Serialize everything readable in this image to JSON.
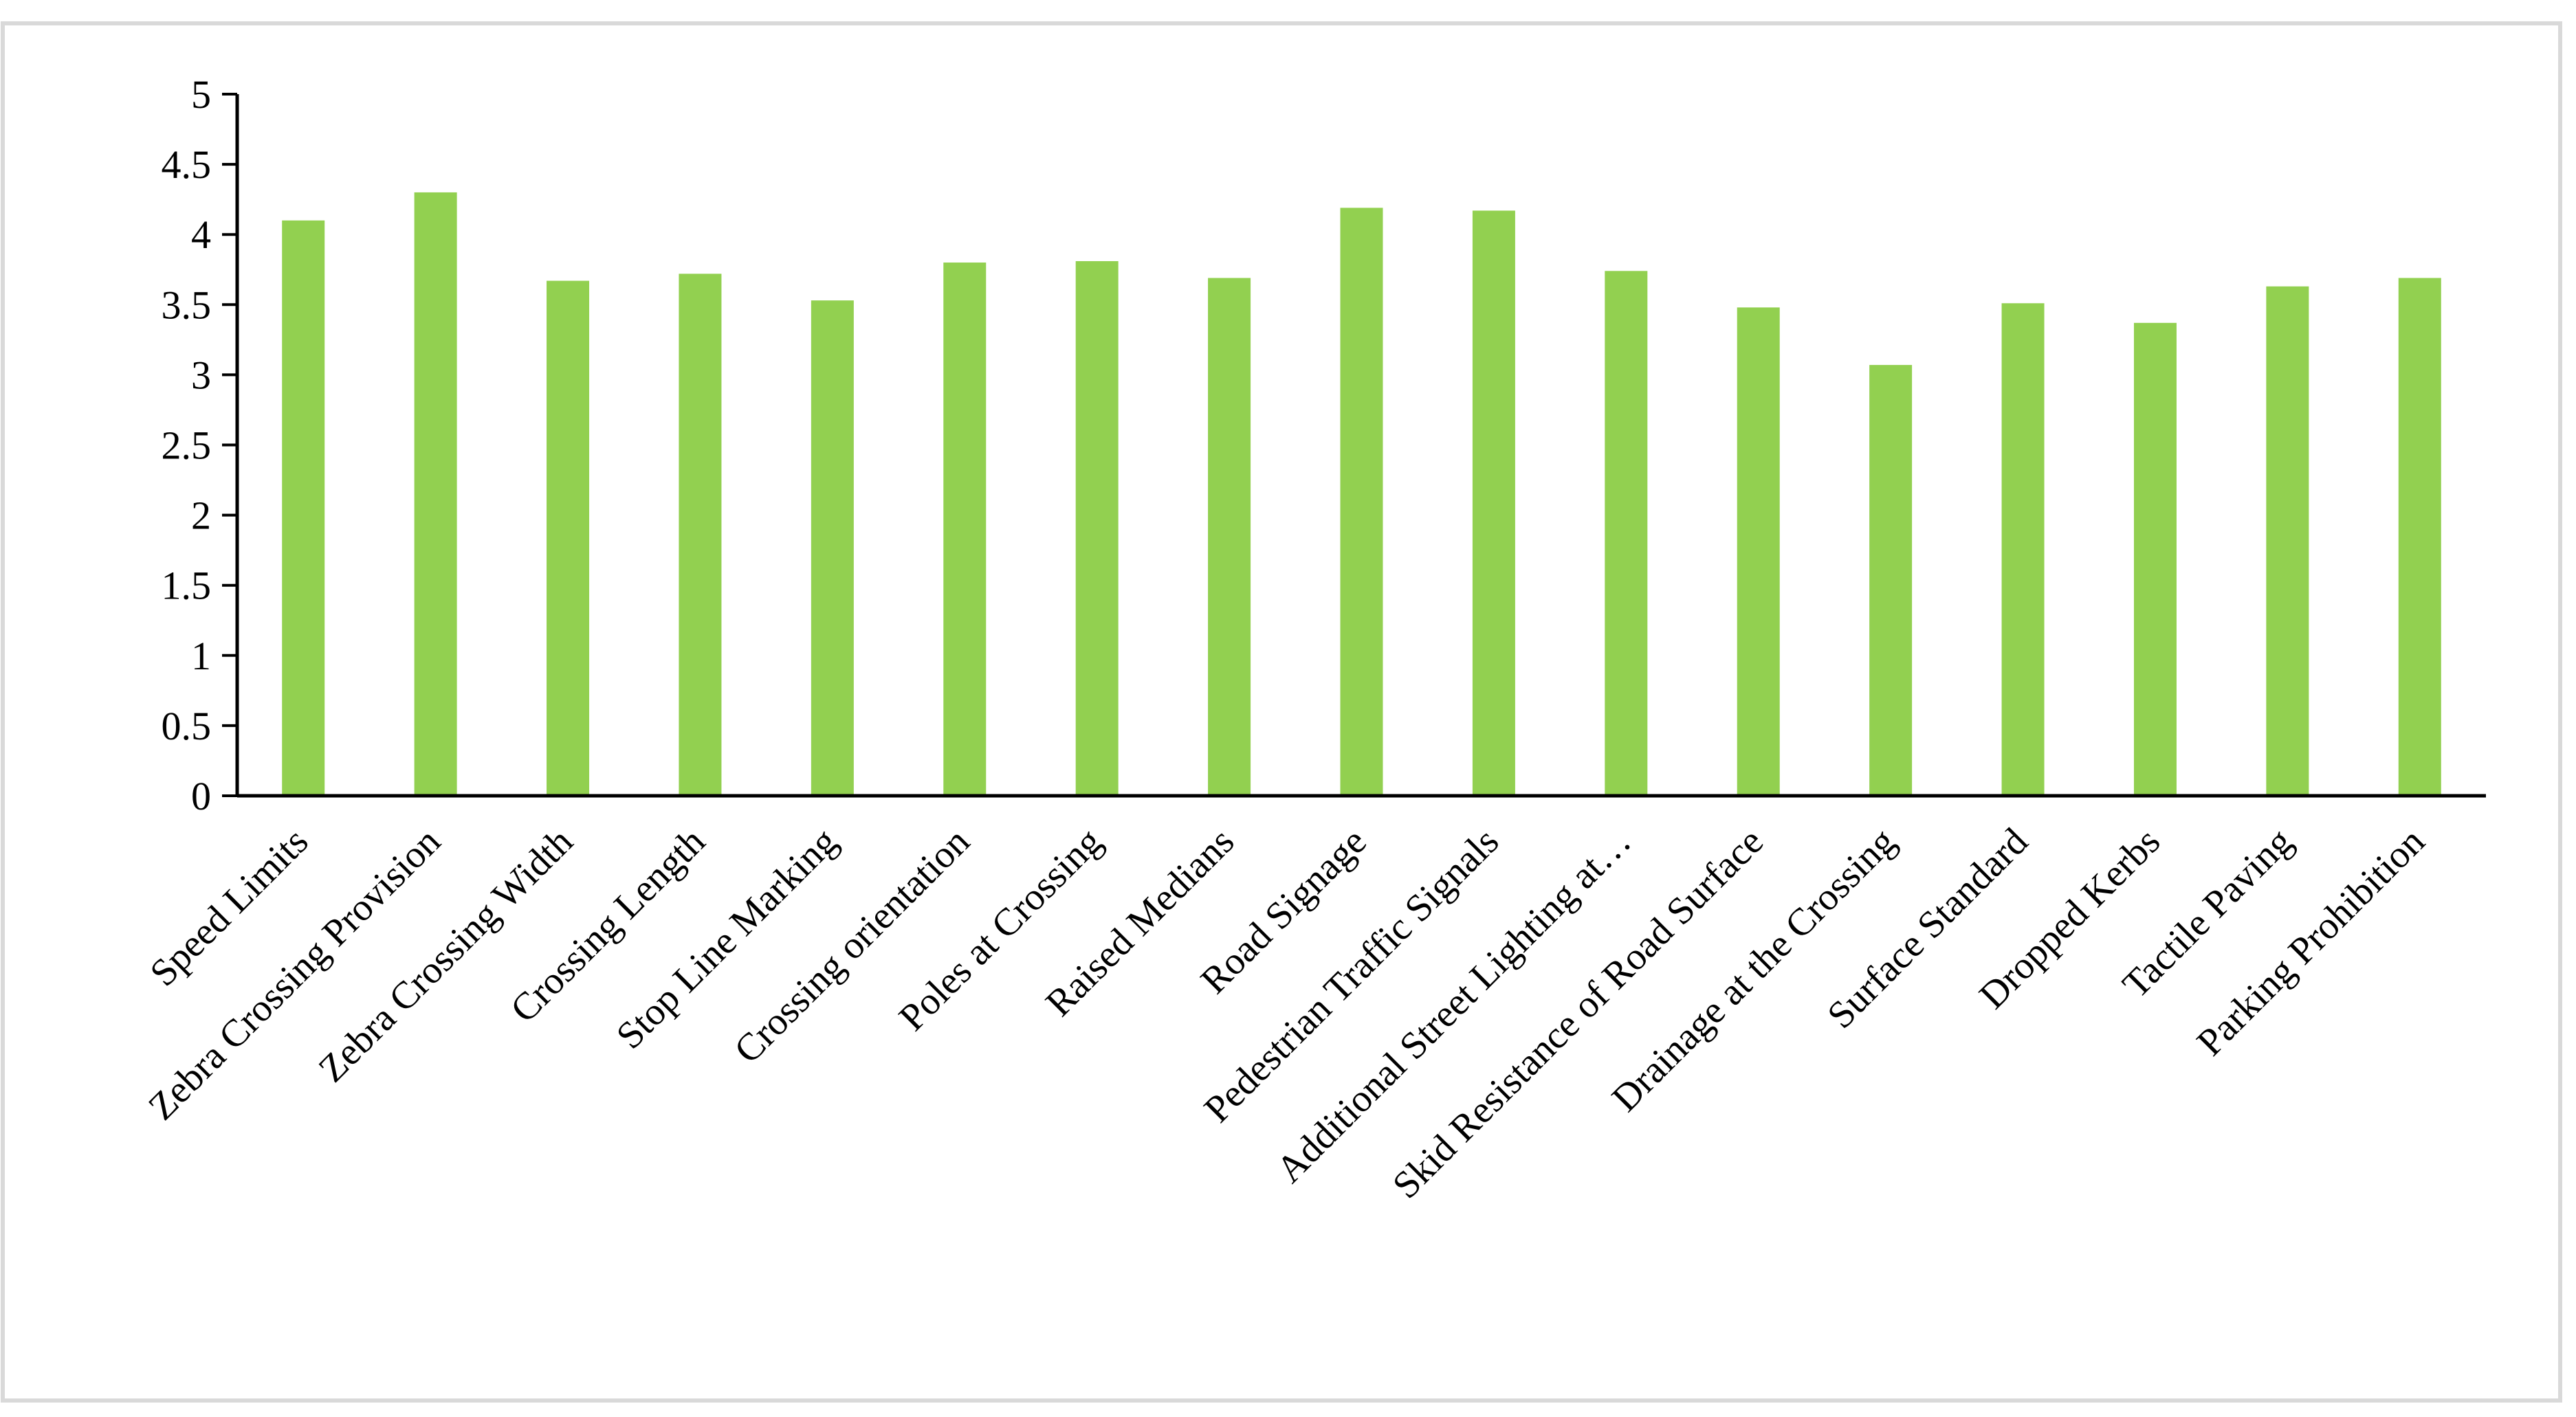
{
  "chart_data": {
    "type": "bar",
    "title": "",
    "xlabel": "",
    "ylabel": "",
    "ylim": [
      0,
      5
    ],
    "yticks": [
      "0",
      "0.5",
      "1",
      "1.5",
      "2",
      "2.5",
      "3",
      "3.5",
      "4",
      "4.5",
      "5"
    ],
    "ytick_values": [
      0,
      0.5,
      1,
      1.5,
      2,
      2.5,
      3,
      3.5,
      4,
      4.5,
      5
    ],
    "grid": false,
    "legend": "none",
    "bar_color": "#92D050",
    "categories": [
      "Speed Limits",
      "Zebra Crossing Provision",
      "Zebra Crossing Width",
      "Crossing Length",
      "Stop Line Marking",
      "Crossing orientation",
      "Poles at Crossing",
      "Raised Medians",
      "Road Signage",
      "Pedestrian Traffic Signals",
      "Additional Street Lighting at…",
      "Skid Resistance of Road Surface",
      "Drainage at the Crossing",
      "Surface Standard",
      "Dropped Kerbs",
      "Tactile Paving",
      "Parking Prohibition"
    ],
    "values": [
      4.1,
      4.3,
      3.67,
      3.72,
      3.53,
      3.8,
      3.81,
      3.69,
      4.19,
      4.17,
      3.74,
      3.48,
      3.07,
      3.51,
      3.37,
      3.63,
      3.69
    ]
  }
}
